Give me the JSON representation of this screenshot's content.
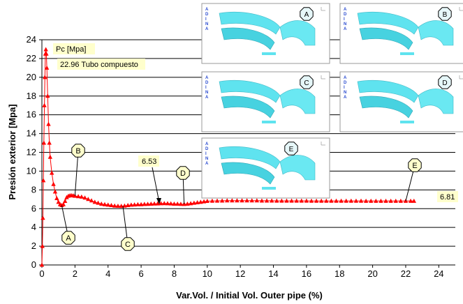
{
  "chart_data": {
    "type": "line",
    "xlabel": "Var.Vol. / Initial Vol. Outer pipe (%)",
    "ylabel": "Presión exterior [Mpa]",
    "xlim": [
      0,
      25
    ],
    "ylim": [
      0,
      24
    ],
    "xticks": [
      "0",
      "2",
      "4",
      "6",
      "8",
      "10",
      "12",
      "14",
      "16",
      "18",
      "20",
      "22",
      "24"
    ],
    "yticks": [
      "0",
      "2",
      "4",
      "6",
      "8",
      "10",
      "12",
      "14",
      "16",
      "18",
      "20",
      "22",
      "24"
    ],
    "grid": "horizontal",
    "series_color": "#ff0000",
    "marker": "triangle",
    "series": [
      {
        "x": [
          0,
          0.03,
          0.06,
          0.09,
          0.12,
          0.15,
          0.18,
          0.21,
          0.24,
          0.27,
          0.3,
          0.35,
          0.4,
          0.45,
          0.5,
          0.6,
          0.7,
          0.8,
          0.9,
          1.0,
          1.1,
          1.2,
          1.3,
          1.4,
          1.5,
          1.6,
          1.7,
          1.8,
          1.9,
          2.0,
          2.2,
          2.4,
          2.6,
          2.8,
          3.0,
          3.2,
          3.4,
          3.6,
          3.8,
          4.0,
          4.2,
          4.4,
          4.6,
          4.8,
          5.0,
          5.2,
          5.4,
          5.6,
          5.8,
          6.0,
          6.2,
          6.4,
          6.6,
          6.8,
          7.0,
          7.2,
          7.4,
          7.6,
          7.8,
          8.0,
          8.2,
          8.4,
          8.6,
          8.8,
          9.0,
          9.2,
          9.4,
          9.6,
          9.8,
          10.0,
          10.3,
          10.6,
          10.9,
          11.2,
          11.5,
          11.8,
          12.1,
          12.4,
          12.7,
          13.0,
          13.3,
          13.6,
          13.9,
          14.2,
          14.5,
          14.8,
          15.1,
          15.4,
          15.7,
          16.0,
          16.3,
          16.6,
          16.9,
          17.2,
          17.5,
          17.8,
          18.1,
          18.4,
          18.7,
          19.0,
          19.3,
          19.6,
          19.9,
          20.2,
          20.5,
          20.8,
          21.1,
          21.4,
          21.7,
          22.0,
          22.3,
          22.5
        ],
        "y": [
          0,
          2,
          5,
          9,
          13,
          17,
          20,
          22.5,
          22.96,
          22.5,
          21,
          18,
          15,
          13,
          11.5,
          9.8,
          8.6,
          7.8,
          7.1,
          6.7,
          6.45,
          6.35,
          6.45,
          6.8,
          7.2,
          7.35,
          7.4,
          7.4,
          7.38,
          7.35,
          7.3,
          7.25,
          7.15,
          7.0,
          6.85,
          6.7,
          6.6,
          6.5,
          6.45,
          6.4,
          6.35,
          6.3,
          6.28,
          6.27,
          6.3,
          6.35,
          6.4,
          6.42,
          6.45,
          6.45,
          6.47,
          6.48,
          6.5,
          6.52,
          6.53,
          6.55,
          6.56,
          6.55,
          6.53,
          6.5,
          6.5,
          6.48,
          6.47,
          6.5,
          6.55,
          6.6,
          6.65,
          6.7,
          6.75,
          6.8,
          6.82,
          6.83,
          6.84,
          6.85,
          6.85,
          6.85,
          6.85,
          6.85,
          6.85,
          6.85,
          6.84,
          6.84,
          6.84,
          6.83,
          6.83,
          6.83,
          6.83,
          6.83,
          6.83,
          6.83,
          6.82,
          6.82,
          6.82,
          6.82,
          6.82,
          6.82,
          6.82,
          6.82,
          6.82,
          6.82,
          6.82,
          6.81,
          6.81,
          6.81,
          6.81,
          6.81,
          6.81,
          6.81,
          6.81,
          6.81,
          6.81,
          6.81
        ]
      }
    ],
    "annotations": [
      {
        "text": "Pc [Mpa]"
      },
      {
        "text": "22.96 Tubo compuesto"
      },
      {
        "text": "6.53"
      },
      {
        "text": "6.81"
      }
    ],
    "points": [
      {
        "label": "A",
        "x": 1.2,
        "y": 6.35
      },
      {
        "label": "B",
        "x": 2.0,
        "y": 7.4
      },
      {
        "label": "C",
        "x": 4.9,
        "y": 6.27
      },
      {
        "label": "D",
        "x": 8.6,
        "y": 6.5
      },
      {
        "label": "E",
        "x": 22.0,
        "y": 6.81
      }
    ],
    "insets": [
      {
        "label": "A"
      },
      {
        "label": "B"
      },
      {
        "label": "C"
      },
      {
        "label": "D"
      },
      {
        "label": "E"
      }
    ],
    "inset_logo": "ADINA"
  }
}
